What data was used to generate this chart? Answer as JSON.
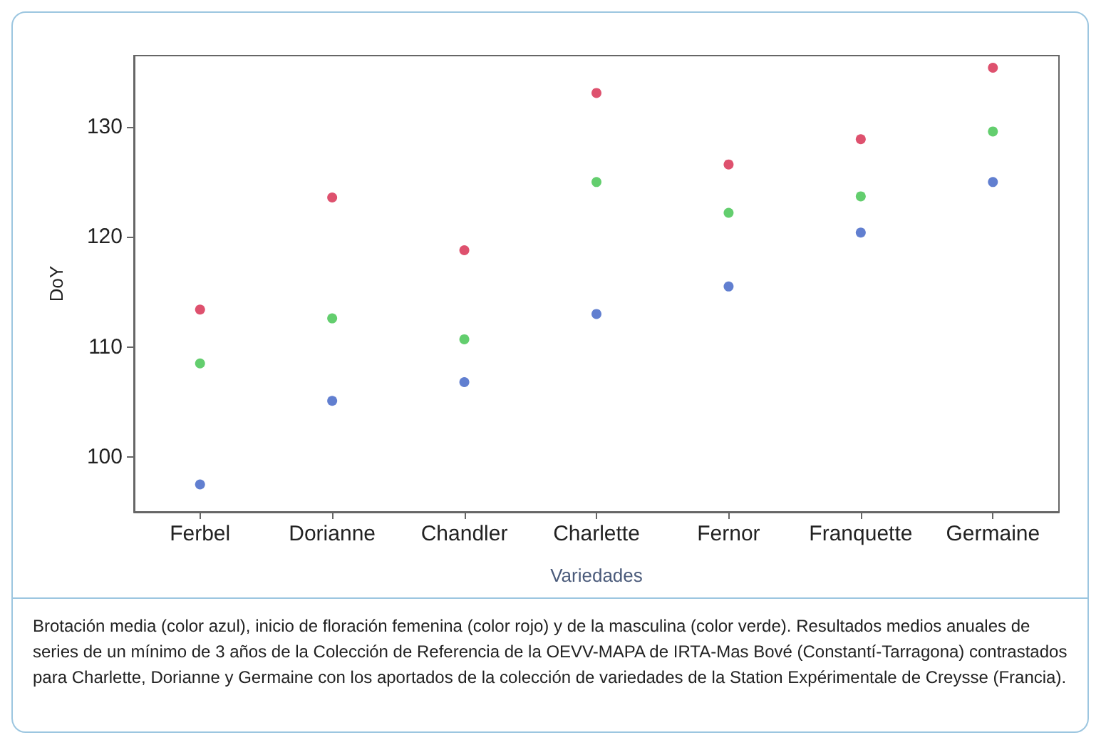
{
  "chart_data": {
    "type": "scatter",
    "xlabel": "Variedades",
    "ylabel": "DoY",
    "categories": [
      "Ferbel",
      "Dorianne",
      "Chandler",
      "Charlette",
      "Fernor",
      "Franquette",
      "Germaine"
    ],
    "series": [
      {
        "color": "#3a5fc4",
        "values": [
          97.5,
          105.1,
          106.8,
          113.0,
          115.5,
          120.4,
          125.0
        ]
      },
      {
        "color": "#d6254a",
        "values": [
          113.4,
          123.6,
          118.8,
          133.1,
          126.6,
          128.9,
          135.4
        ]
      },
      {
        "color": "#3cc24a",
        "values": [
          108.5,
          112.6,
          110.7,
          125.0,
          122.2,
          123.7,
          129.6
        ]
      }
    ],
    "ylim": [
      95,
      136.5
    ],
    "yticks": [
      100,
      110,
      120,
      130
    ],
    "grid": false,
    "marker": "circle",
    "annotations": [
      "Brotación media (color azul), inicio de floración femenina (color rojo) y de la masculina (color verde). Resultados medios anuales de series de un mínimo de 3 años de la Colección de Referencia de la OEVV-MAPA de IRTA-Mas Bové (Constantí-Tarragona) contrastados para Charlette, Dorianne y Germaine con los aportados de la colección de variedades de la Station Expérimentale de Creysse (Francia)."
    ]
  }
}
